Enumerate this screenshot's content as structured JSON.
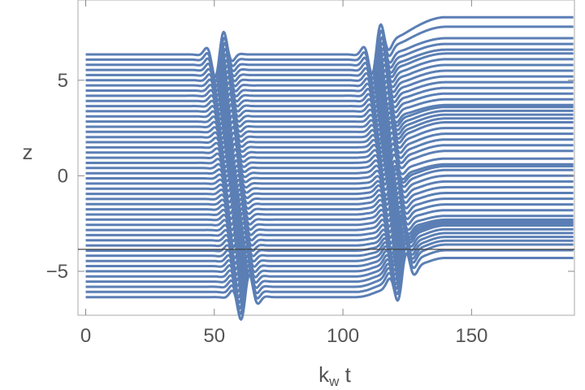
{
  "chart_data": {
    "type": "line",
    "xlabel": "k",
    "xlabel_subscript": "w",
    "xlabel_suffix": " t",
    "ylabel": "z",
    "xlim": [
      -3,
      190
    ],
    "ylim": [
      -7.3,
      9.2
    ],
    "x_ticks": [
      0,
      50,
      100,
      150
    ],
    "y_ticks": [
      -5,
      0,
      5
    ],
    "series_color": "#5b7fb5",
    "grid": false,
    "horizontal_reference_line": -3.85,
    "series_count": 48,
    "initial_z_range": [
      -6.35,
      6.35
    ],
    "final_z_values": [
      -4.3,
      -3.9,
      -3.6,
      -3.4,
      -3.2,
      -3.0,
      -2.8,
      -2.6,
      -2.5,
      -2.4,
      -2.3,
      -2.1,
      -1.8,
      -1.5,
      -1.2,
      -0.9,
      -0.6,
      -0.3,
      0.0,
      0.3,
      0.5,
      0.6,
      0.9,
      1.3,
      1.6,
      1.9,
      2.2,
      2.5,
      2.8,
      3.0,
      3.2,
      3.4,
      3.6,
      3.7,
      4.0,
      4.3,
      4.6,
      4.9,
      5.2,
      5.5,
      5.8,
      6.1,
      6.4,
      6.6,
      6.9,
      7.2,
      7.8,
      8.3
    ],
    "wave_packets": [
      {
        "x_range": [
          40,
          80
        ],
        "center_start": 62,
        "center_end": 52,
        "peak_amplitude": 0.35
      },
      {
        "x_range": [
          100,
          145
        ],
        "center_start": 123,
        "center_end": 113,
        "peak_amplitude": 0.35
      }
    ]
  }
}
